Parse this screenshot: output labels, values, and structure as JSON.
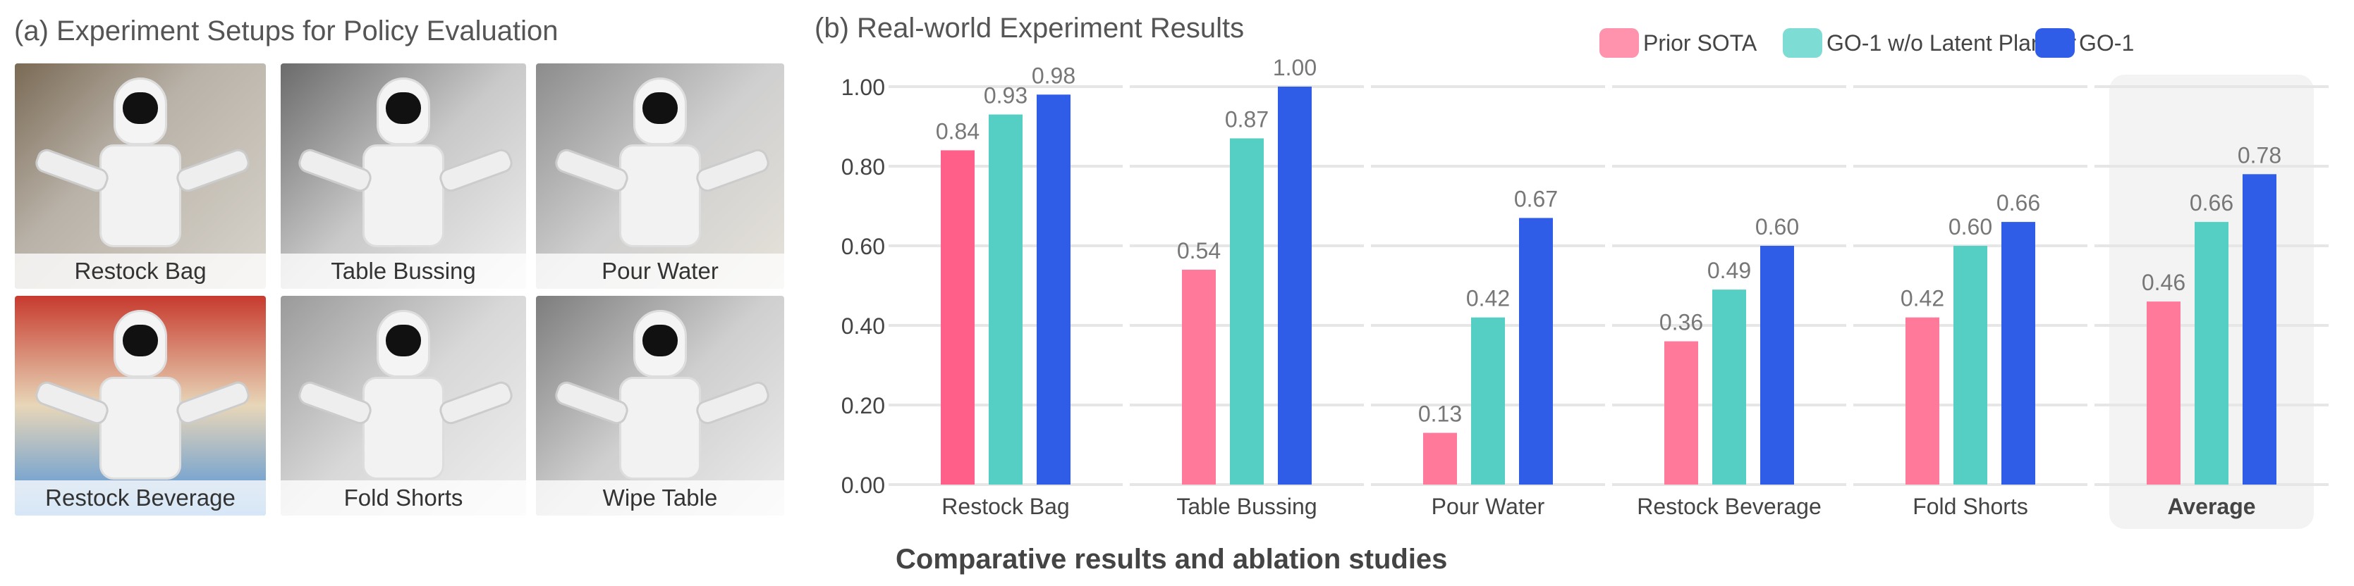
{
  "panel_a": {
    "title": "(a) Experiment Setups for Policy Evaluation",
    "photos": [
      {
        "label": "Restock Bag"
      },
      {
        "label": "Table Bussing"
      },
      {
        "label": "Pour Water"
      },
      {
        "label": "Restock Beverage"
      },
      {
        "label": "Fold Shorts"
      },
      {
        "label": "Wipe Table"
      }
    ]
  },
  "panel_b": {
    "title": "(b) Real-world Experiment Results"
  },
  "caption": "Comparative results and ablation studies",
  "colors": {
    "prior_sota": "#FF7A9A",
    "prior_sota_legend": "#FF93AE",
    "go1_wo_latent": "#55CFC4",
    "go1_wo_latent_legend": "#7DDCD4",
    "go1": "#2F5DE8",
    "grid": "#E6E6E6",
    "average_bg": "#F3F3F3"
  },
  "chart_data": {
    "type": "bar",
    "title": "(b) Real-world Experiment Results",
    "xlabel": "",
    "ylabel": "",
    "ylim": [
      0,
      1.0
    ],
    "yticks": [
      "0.00",
      "0.20",
      "0.40",
      "0.60",
      "0.80",
      "1.00"
    ],
    "grid": true,
    "legend_placement": "top-right",
    "categories": [
      "Restock Bag",
      "Table Bussing",
      "Pour Water",
      "Restock Beverage",
      "Fold Shorts",
      "Average"
    ],
    "highlighted_category": "Average",
    "series": [
      {
        "name": "Prior SOTA",
        "values": [
          0.84,
          0.54,
          0.13,
          0.36,
          0.42,
          0.46
        ],
        "labels": [
          "0.84",
          "0.54",
          "0.13",
          "0.36",
          "0.42",
          "0.46"
        ]
      },
      {
        "name": "GO-1 w/o Latent Planner",
        "values": [
          0.93,
          0.87,
          0.42,
          0.49,
          0.6,
          0.66
        ],
        "labels": [
          "0.93",
          "0.87",
          "0.42",
          "0.49",
          "0.60",
          "0.66"
        ]
      },
      {
        "name": "GO-1",
        "values": [
          0.98,
          1.0,
          0.67,
          0.6,
          0.66,
          0.78
        ],
        "labels": [
          "0.98",
          "1.00",
          "0.67",
          "0.60",
          "0.66",
          "0.78"
        ]
      }
    ]
  }
}
